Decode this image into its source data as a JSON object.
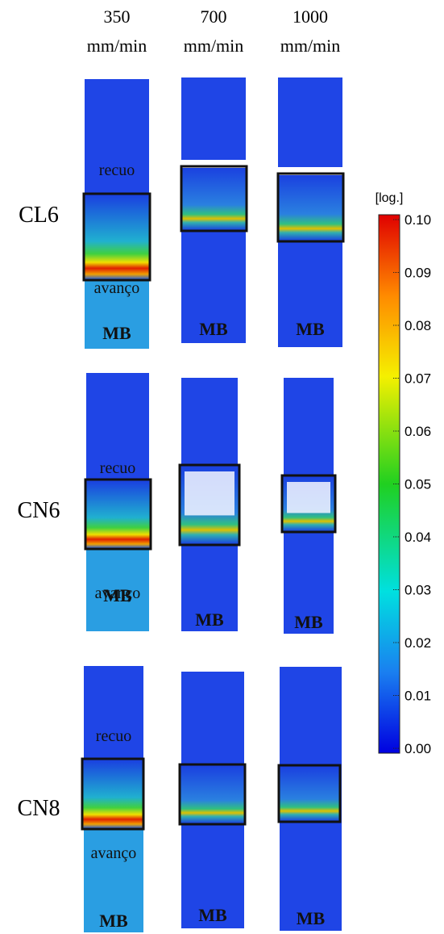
{
  "column_headers": [
    {
      "speed": "350",
      "unit": "mm/min"
    },
    {
      "speed": "700",
      "unit": "mm/min"
    },
    {
      "speed": "1000",
      "unit": "mm/min"
    }
  ],
  "rows": [
    {
      "label": "CL6",
      "panels": [
        {
          "top": "recuo",
          "bottom": "avanço",
          "base": "MB"
        },
        {
          "base": "MB"
        },
        {
          "base": "MB"
        }
      ]
    },
    {
      "label": "CN6",
      "panels": [
        {
          "top": "recuo",
          "bottom": "avanço",
          "base": "MB"
        },
        {
          "base": "MB"
        },
        {
          "base": "MB"
        }
      ]
    },
    {
      "label": "CN8",
      "panels": [
        {
          "top": "recuo",
          "bottom": "avanço",
          "base": "MB"
        },
        {
          "base": "MB"
        },
        {
          "base": "MB"
        }
      ]
    }
  ],
  "colorbar": {
    "label": "[log.]",
    "lim": [
      0,
      0.1
    ],
    "ticks": [
      {
        "value": 0,
        "label": "0.00"
      },
      {
        "value": 0.01,
        "label": "0.01"
      },
      {
        "value": 0.02,
        "label": "0.02"
      },
      {
        "value": 0.03,
        "label": "0.03"
      },
      {
        "value": 0.04,
        "label": "0.04"
      },
      {
        "value": 0.05,
        "label": "0.05"
      },
      {
        "value": 0.06,
        "label": "0.06"
      },
      {
        "value": 0.07,
        "label": "0.07"
      },
      {
        "value": 0.08,
        "label": "0.08"
      },
      {
        "value": 0.09,
        "label": "0.09"
      },
      {
        "value": 0.1,
        "label": "0.10"
      }
    ]
  }
}
